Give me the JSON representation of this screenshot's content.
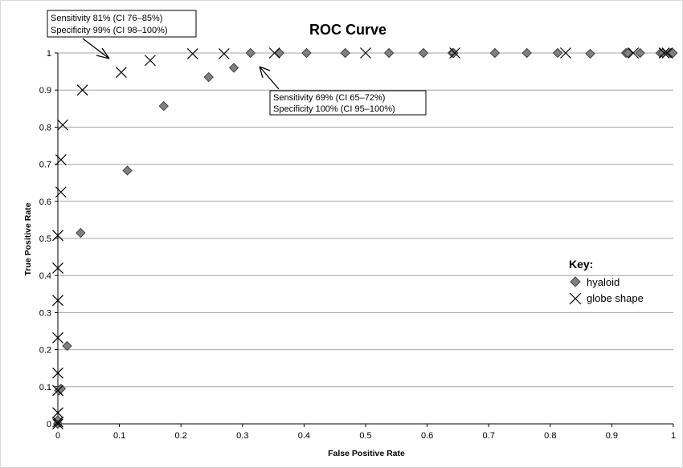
{
  "chart_data": {
    "type": "scatter",
    "title": "ROC Curve",
    "xlabel": "False Positive Rate",
    "ylabel": "True Positive Rate",
    "xlim": [
      0,
      1
    ],
    "ylim": [
      0,
      1
    ],
    "x_ticks": [
      "0",
      "0.1",
      "0.2",
      "0.3",
      "0.4",
      "0.5",
      "0.6",
      "0.7",
      "0.8",
      "0.9",
      "1"
    ],
    "y_ticks": [
      "0",
      "0.1",
      "0.2",
      "0.3",
      "0.4",
      "0.5",
      "0.6",
      "0.7",
      "0.8",
      "0.9",
      "1"
    ],
    "grid": "horizontal",
    "legend": {
      "title": "Key:",
      "placement": "right",
      "entries": [
        "hyaloid",
        "globe shape"
      ]
    },
    "series": [
      {
        "name": "hyaloid",
        "marker": "diamond",
        "color": "#808080",
        "points": [
          [
            0,
            0
          ],
          [
            0,
            0.01
          ],
          [
            0.002,
            0.09
          ],
          [
            0.005,
            0.095
          ],
          [
            0.015,
            0.21
          ],
          [
            0.037,
            0.515
          ],
          [
            0.113,
            0.683
          ],
          [
            0.172,
            0.857
          ],
          [
            0.245,
            0.935
          ],
          [
            0.286,
            0.96
          ],
          [
            0.313,
            1
          ],
          [
            0.36,
            1
          ],
          [
            0.404,
            1
          ],
          [
            0.467,
            1
          ],
          [
            0.538,
            1
          ],
          [
            0.594,
            1
          ],
          [
            0.641,
            1
          ],
          [
            0.643,
            1
          ],
          [
            0.71,
            1
          ],
          [
            0.762,
            1
          ],
          [
            0.812,
            1
          ],
          [
            0.865,
            0.998
          ],
          [
            0.923,
            1
          ],
          [
            0.926,
            1
          ],
          [
            0.946,
            1
          ],
          [
            0.979,
            1
          ],
          [
            0.983,
            1
          ],
          [
            0.995,
            1
          ],
          [
            0.999,
            1
          ]
        ]
      },
      {
        "name": "globe shape",
        "marker": "x",
        "color": "#000000",
        "points": [
          [
            0,
            0
          ],
          [
            0,
            0.005
          ],
          [
            0,
            0.03
          ],
          [
            0,
            0.09
          ],
          [
            0,
            0.137
          ],
          [
            0,
            0.232
          ],
          [
            0,
            0.333
          ],
          [
            0,
            0.42
          ],
          [
            0,
            0.508
          ],
          [
            0.005,
            0.625
          ],
          [
            0.005,
            0.712
          ],
          [
            0.008,
            0.806
          ],
          [
            0.04,
            0.9
          ],
          [
            0.103,
            0.948
          ],
          [
            0.15,
            0.98
          ],
          [
            0.219,
            0.998
          ],
          [
            0.27,
            0.998
          ],
          [
            0.352,
            1
          ],
          [
            0.5,
            1
          ],
          [
            0.645,
            1
          ],
          [
            0.825,
            1
          ],
          [
            0.935,
            1
          ],
          [
            0.985,
            1
          ],
          [
            0.99,
            1
          ]
        ]
      }
    ],
    "annotations": [
      {
        "lines": [
          "Sensitivity 81% (CI 76–85%)",
          "Specificity 99% (CI 98–100%)"
        ],
        "target": [
          0.089,
          0.983
        ]
      },
      {
        "lines": [
          "Sensitivity 69% (CI 65–72%)",
          "Specificity 100% (CI 95–100%)"
        ],
        "target": [
          0.327,
          0.985
        ]
      }
    ]
  }
}
